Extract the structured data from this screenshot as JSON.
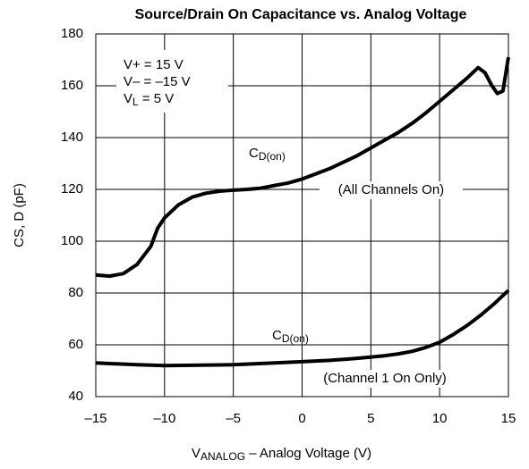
{
  "chart_data": {
    "type": "line",
    "title": "Source/Drain On Capacitance vs. Analog Voltage",
    "xlabel": {
      "main": "V",
      "sub": "ANALOG",
      "rest": " – Analog Voltage (V)"
    },
    "ylabel": "CS, D (pF)",
    "conditions": [
      {
        "main": "V+ = 15 V"
      },
      {
        "main": "V– = –15 V"
      },
      {
        "main": "V",
        "sub": "L",
        "rest": " = 5 V"
      }
    ],
    "xlim": [
      -15,
      15
    ],
    "xticks": [
      {
        "value": -15,
        "label": "–15"
      },
      {
        "value": -10,
        "label": "–10"
      },
      {
        "value": -5,
        "label": "–5"
      },
      0,
      5,
      10,
      15
    ],
    "ylim": [
      40,
      180
    ],
    "yticks": [
      40,
      60,
      80,
      100,
      120,
      140,
      160,
      180
    ],
    "grid": true,
    "series": [
      {
        "label": {
          "main": "C",
          "sub": "D(on)"
        },
        "note": "(All Channels On)",
        "color": "#000000",
        "x": [
          -15,
          -14,
          -13,
          -12,
          -11,
          -10.5,
          -10,
          -9,
          -8,
          -7,
          -6,
          -5,
          -4,
          -3,
          -2,
          -1,
          0,
          1,
          2,
          3,
          4,
          5,
          6,
          7,
          8,
          9,
          10,
          11,
          12,
          12.8,
          13.3,
          13.8,
          14.2,
          14.6,
          15
        ],
        "values": [
          87,
          86.5,
          87.5,
          91,
          98,
          105,
          109,
          114,
          117,
          118.5,
          119.3,
          119.7,
          120,
          120.5,
          121.5,
          122.5,
          124,
          126,
          128,
          130.5,
          133,
          136,
          139,
          142,
          145.5,
          149.5,
          154,
          158.5,
          163,
          167,
          165,
          160,
          157,
          158,
          171
        ]
      },
      {
        "label": {
          "main": "C",
          "sub": "D(on)"
        },
        "note": "(Channel 1 On Only)",
        "color": "#000000",
        "x": [
          -15,
          -12,
          -10,
          -5,
          -2,
          0,
          2,
          4,
          6,
          7,
          8,
          9,
          10,
          11,
          12,
          13,
          14,
          15
        ],
        "values": [
          53,
          52.3,
          52,
          52.3,
          53,
          53.5,
          54,
          54.8,
          55.8,
          56.5,
          57.5,
          59,
          61,
          64,
          67.5,
          71.5,
          76,
          81
        ]
      }
    ]
  }
}
